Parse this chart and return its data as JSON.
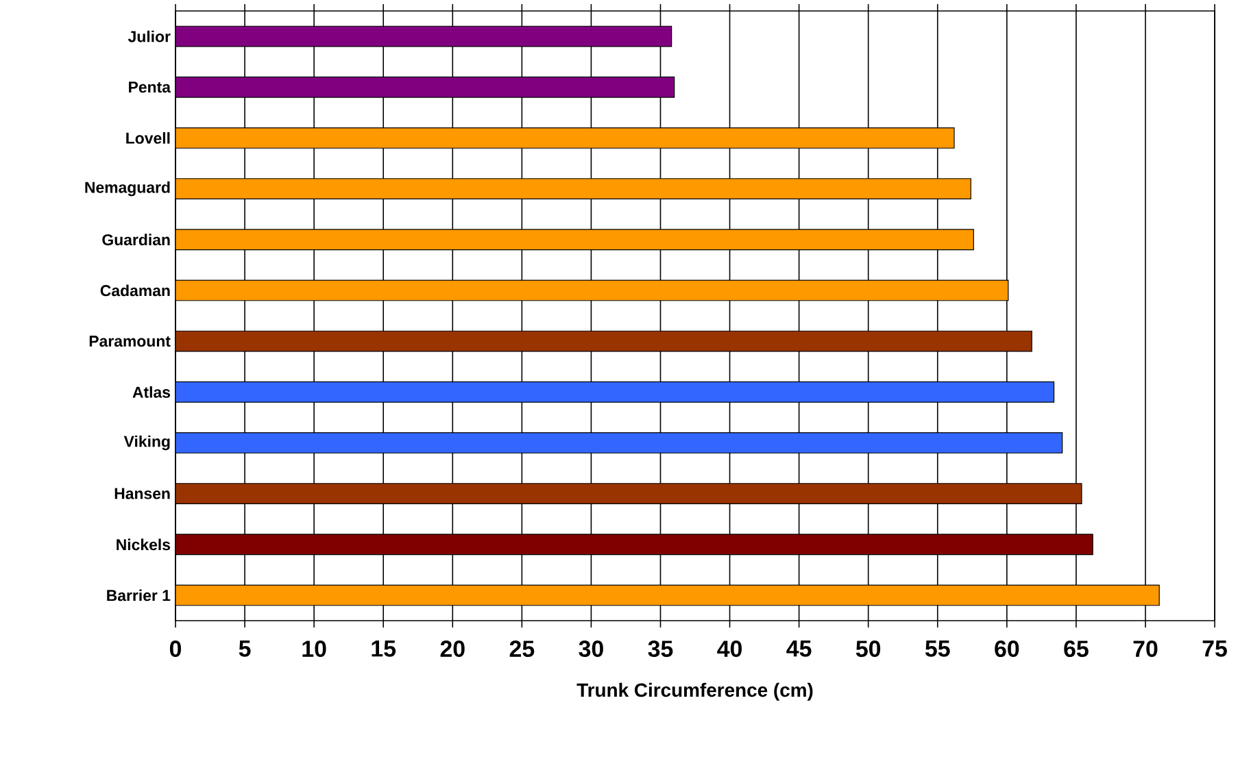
{
  "chart_data": {
    "type": "bar",
    "orientation": "horizontal",
    "xlabel": "Trunk Circumference (cm)",
    "categories": [
      "Julior",
      "Penta",
      "Lovell",
      "Nemaguard",
      "Guardian",
      "Cadaman",
      "Paramount",
      "Atlas",
      "Viking",
      "Hansen",
      "Nickels",
      "Barrier 1"
    ],
    "values": [
      35.8,
      36.0,
      56.2,
      57.4,
      57.6,
      60.1,
      61.8,
      63.4,
      64.0,
      65.4,
      66.2,
      71.0
    ],
    "colors": [
      "#800080",
      "#800080",
      "#ff9900",
      "#ff9900",
      "#ff9900",
      "#ff9900",
      "#993300",
      "#3366ff",
      "#3366ff",
      "#993300",
      "#800000",
      "#ff9900"
    ],
    "xlim": [
      0,
      75
    ],
    "xticks": [
      0,
      5,
      10,
      15,
      20,
      25,
      30,
      35,
      40,
      45,
      50,
      55,
      60,
      65,
      70,
      75
    ],
    "grid": "x"
  }
}
